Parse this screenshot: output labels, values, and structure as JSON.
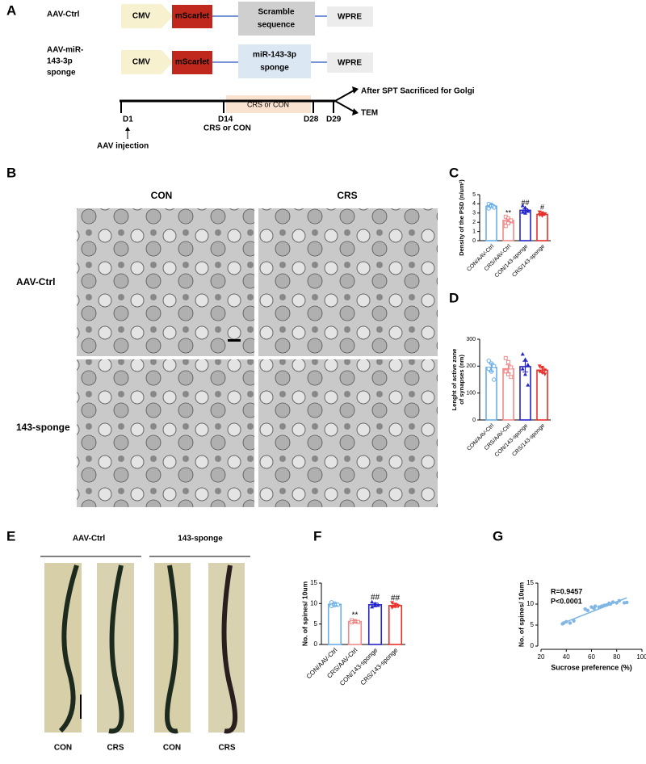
{
  "panel_a": {
    "panel": "A",
    "row1": {
      "name": "AAV-Ctrl",
      "promoter": "CMV",
      "reporter": "mScarlet",
      "insert": [
        "Scramble",
        "sequence"
      ],
      "tail": "WPRE"
    },
    "row2": {
      "name": [
        "AAV-miR-",
        "143-3p",
        "sponge"
      ],
      "promoter": "CMV",
      "reporter": "mScarlet",
      "insert": [
        "miR-143-3p",
        "sponge"
      ],
      "tail": "WPRE"
    },
    "timeline": {
      "d1": "D1",
      "injection": "AAV injection",
      "d14": "D14",
      "d14_note": "CRS or CON",
      "window": "CRS or CON",
      "d28": "D28",
      "d29": "D29",
      "out1": "After SPT Sacrificed for Golgi",
      "out2": "TEM"
    }
  },
  "panel_b": {
    "panel": "B",
    "columns": [
      "CON",
      "CRS"
    ],
    "rows": [
      "AAV-Ctrl",
      "143-sponge"
    ]
  },
  "panel_e": {
    "panel": "E",
    "groups": [
      "AAV-Ctrl",
      "143-sponge"
    ],
    "columns": [
      "CON",
      "CRS",
      "CON",
      "CRS"
    ]
  },
  "chart_data": [
    {
      "type": "bar",
      "panel": "C",
      "ylabel": [
        "Density of the PSD (n/um²)"
      ],
      "categories": [
        "CON/AAV-Ctrl",
        "CRS/AAV-Ctrl",
        "CON/143-sponge",
        "CRS/143-sponge"
      ],
      "values": [
        3.75,
        2.2,
        3.3,
        2.85
      ],
      "errors": [
        0.15,
        0.15,
        0.15,
        0.1
      ],
      "annotations": [
        null,
        "**",
        "##",
        "#"
      ],
      "points": [
        [
          4.0,
          3.9,
          3.7,
          3.5,
          3.8,
          3.6
        ],
        [
          2.6,
          2.4,
          2.1,
          2.0,
          1.9,
          2.2,
          1.6
        ],
        [
          3.8,
          3.6,
          3.3,
          3.1,
          3.0,
          3.2
        ],
        [
          3.1,
          3.0,
          2.9,
          2.8,
          2.7,
          2.9
        ]
      ],
      "colors": [
        "#6aaee8",
        "#f08a8a",
        "#2525c8",
        "#e8302a"
      ],
      "ylim": [
        0,
        5
      ],
      "yticks": [
        0,
        1,
        2,
        3,
        4,
        5
      ]
    },
    {
      "type": "bar",
      "panel": "D",
      "ylabel": [
        "Lenght of active zone",
        "of synapses (nm)"
      ],
      "categories": [
        "CON/AAV-Ctrl",
        "CRS/AAV-Ctrl",
        "CON/143-sponge",
        "CRS/143-sponge"
      ],
      "values": [
        195,
        190,
        198,
        185
      ],
      "errors": [
        15,
        15,
        20,
        8
      ],
      "annotations": [
        null,
        null,
        null,
        null
      ],
      "points": [
        [
          220,
          210,
          200,
          190,
          180,
          150
        ],
        [
          230,
          215,
          195,
          180,
          170,
          160
        ],
        [
          245,
          225,
          205,
          190,
          170,
          130
        ],
        [
          200,
          195,
          185,
          180,
          175,
          170
        ]
      ],
      "colors": [
        "#6aaee8",
        "#f08a8a",
        "#2525c8",
        "#e8302a"
      ],
      "ylim": [
        0,
        300
      ],
      "yticks": [
        0,
        100,
        200,
        300
      ]
    },
    {
      "type": "bar",
      "panel": "F",
      "ylabel": [
        "No. of spines/ 10um"
      ],
      "categories": [
        "CON/AAV-Ctrl",
        "CRS/AAV-Ctrl",
        "CON/143-sponge",
        "CRS/143-sponge"
      ],
      "values": [
        9.8,
        5.6,
        9.7,
        9.5
      ],
      "errors": [
        0.3,
        0.2,
        0.4,
        0.4
      ],
      "annotations": [
        null,
        "**",
        "##",
        "##"
      ],
      "points": [
        [
          10.3,
          10.0,
          9.7,
          9.4,
          9.6
        ],
        [
          5.9,
          5.7,
          5.5,
          5.4,
          5.6
        ],
        [
          10.4,
          10.0,
          9.6,
          9.2,
          9.5
        ],
        [
          10.2,
          9.8,
          9.4,
          9.0,
          9.3
        ]
      ],
      "colors": [
        "#6aaee8",
        "#f08a8a",
        "#2525c8",
        "#e8302a"
      ],
      "ylim": [
        0,
        15
      ],
      "yticks": [
        0,
        5,
        10,
        15
      ]
    },
    {
      "type": "scatter",
      "panel": "G",
      "xlabel": "Sucrose preference (%)",
      "ylabel": [
        "No. of spines/ 10um"
      ],
      "annotations": [
        "R=0.9457",
        "P<0.0001"
      ],
      "x": [
        37,
        38,
        40,
        43,
        46,
        55,
        57,
        60,
        62,
        63,
        66,
        68,
        70,
        72,
        74,
        75,
        77,
        80,
        82,
        86,
        88
      ],
      "values": [
        5.3,
        5.5,
        5.8,
        5.5,
        6.0,
        8.8,
        8.5,
        9.3,
        9.0,
        9.5,
        9.3,
        9.5,
        9.7,
        9.8,
        10.2,
        10.0,
        10.5,
        10.3,
        10.8,
        10.3,
        10.4
      ],
      "fit": {
        "x": [
          36,
          88
        ],
        "y": [
          5.3,
          11.5
        ]
      },
      "color": "#7fb6e6",
      "xlim": [
        20,
        100
      ],
      "xticks": [
        20,
        40,
        60,
        80,
        100
      ],
      "ylim": [
        0,
        15
      ],
      "yticks": [
        0,
        5,
        10,
        15
      ]
    }
  ]
}
